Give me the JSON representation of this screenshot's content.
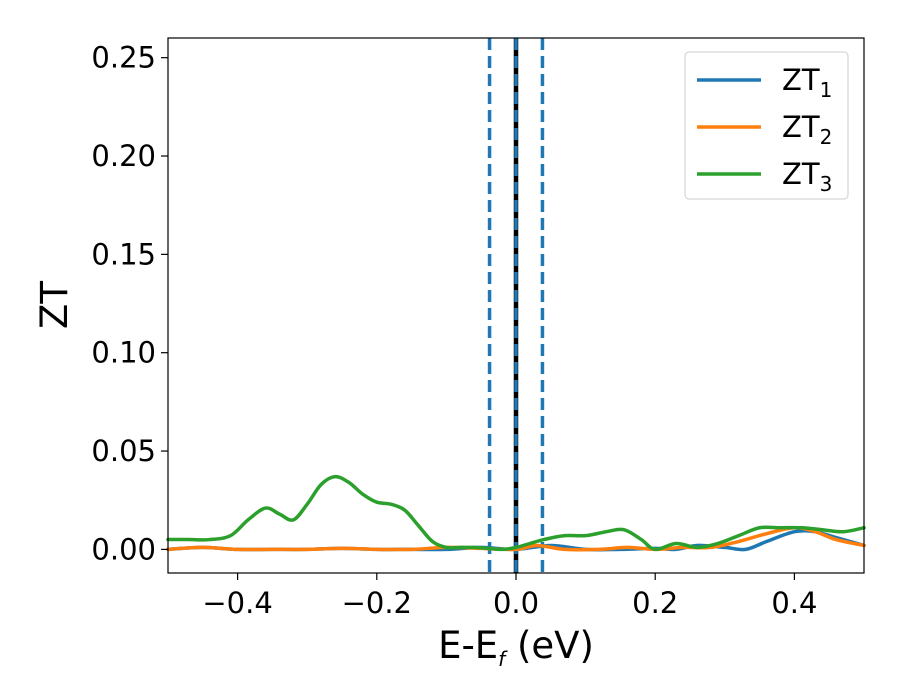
{
  "chart_data": {
    "type": "line",
    "xlabel": {
      "main": "E-E",
      "sub": "f",
      "unit": " (eV)"
    },
    "ylabel": "ZT",
    "xlim": [
      -0.5,
      0.5
    ],
    "ylim": [
      -0.012,
      0.26
    ],
    "xticks": [
      -0.4,
      -0.2,
      0.0,
      0.2,
      0.4
    ],
    "xtick_labels": [
      "−0.4",
      "−0.2",
      "0.0",
      "0.2",
      "0.4"
    ],
    "yticks": [
      0.0,
      0.05,
      0.1,
      0.15,
      0.2,
      0.25
    ],
    "ytick_labels": [
      "0.00",
      "0.05",
      "0.10",
      "0.15",
      "0.20",
      "0.25"
    ],
    "grid": false,
    "legend_position": "top-right",
    "reference_lines": [
      {
        "x": 0.0,
        "style": "solid",
        "color": "#000000"
      },
      {
        "x": -0.038,
        "style": "dashed",
        "color": "#1f77b4"
      },
      {
        "x": 0.0,
        "style": "dashed",
        "color": "#1f77b4"
      },
      {
        "x": 0.038,
        "style": "dashed",
        "color": "#1f77b4"
      }
    ],
    "series": [
      {
        "legend_main": "ZT",
        "legend_sub": "1",
        "color": "#1f77b4",
        "x": [
          -0.5,
          -0.45,
          -0.4,
          -0.35,
          -0.3,
          -0.25,
          -0.2,
          -0.15,
          -0.1,
          -0.05,
          0.0,
          0.05,
          0.1,
          0.15,
          0.2,
          0.23,
          0.26,
          0.3,
          0.33,
          0.36,
          0.4,
          0.43,
          0.46,
          0.5
        ],
        "y": [
          0.0,
          0.001,
          0.0,
          0.0,
          0.0,
          0.0005,
          0.0,
          0.0,
          0.0,
          0.001,
          0.0,
          0.002,
          0.0,
          0.0,
          0.0005,
          0.0,
          0.002,
          0.001,
          0.0,
          0.004,
          0.009,
          0.009,
          0.006,
          0.002
        ]
      },
      {
        "legend_main": "ZT",
        "legend_sub": "2",
        "color": "#ff7f0e",
        "x": [
          -0.5,
          -0.45,
          -0.4,
          -0.35,
          -0.3,
          -0.25,
          -0.2,
          -0.15,
          -0.1,
          -0.05,
          0.0,
          0.03,
          0.07,
          0.12,
          0.16,
          0.2,
          0.24,
          0.28,
          0.32,
          0.36,
          0.4,
          0.43,
          0.46,
          0.5
        ],
        "y": [
          0.0,
          0.001,
          0.0,
          0.0,
          0.0,
          0.0005,
          0.0,
          0.0,
          0.001,
          0.0005,
          0.0,
          0.002,
          0.0,
          0.0,
          0.001,
          0.0,
          0.001,
          0.001,
          0.004,
          0.008,
          0.011,
          0.009,
          0.005,
          0.002
        ]
      },
      {
        "legend_main": "ZT",
        "legend_sub": "3",
        "color": "#2ca02c",
        "x": [
          -0.5,
          -0.47,
          -0.44,
          -0.41,
          -0.385,
          -0.36,
          -0.34,
          -0.32,
          -0.3,
          -0.28,
          -0.26,
          -0.24,
          -0.22,
          -0.2,
          -0.18,
          -0.16,
          -0.14,
          -0.12,
          -0.1,
          -0.08,
          -0.06,
          -0.04,
          -0.02,
          0.0,
          0.02,
          0.04,
          0.07,
          0.1,
          0.13,
          0.155,
          0.18,
          0.2,
          0.23,
          0.26,
          0.29,
          0.32,
          0.35,
          0.38,
          0.41,
          0.44,
          0.47,
          0.5
        ],
        "y": [
          0.005,
          0.005,
          0.005,
          0.007,
          0.015,
          0.021,
          0.018,
          0.015,
          0.023,
          0.033,
          0.037,
          0.034,
          0.028,
          0.024,
          0.023,
          0.02,
          0.012,
          0.004,
          0.001,
          0.001,
          0.001,
          0.0005,
          0.0,
          0.001,
          0.003,
          0.005,
          0.007,
          0.007,
          0.009,
          0.01,
          0.005,
          0.0,
          0.003,
          0.001,
          0.003,
          0.007,
          0.011,
          0.011,
          0.011,
          0.01,
          0.009,
          0.011
        ]
      }
    ]
  }
}
